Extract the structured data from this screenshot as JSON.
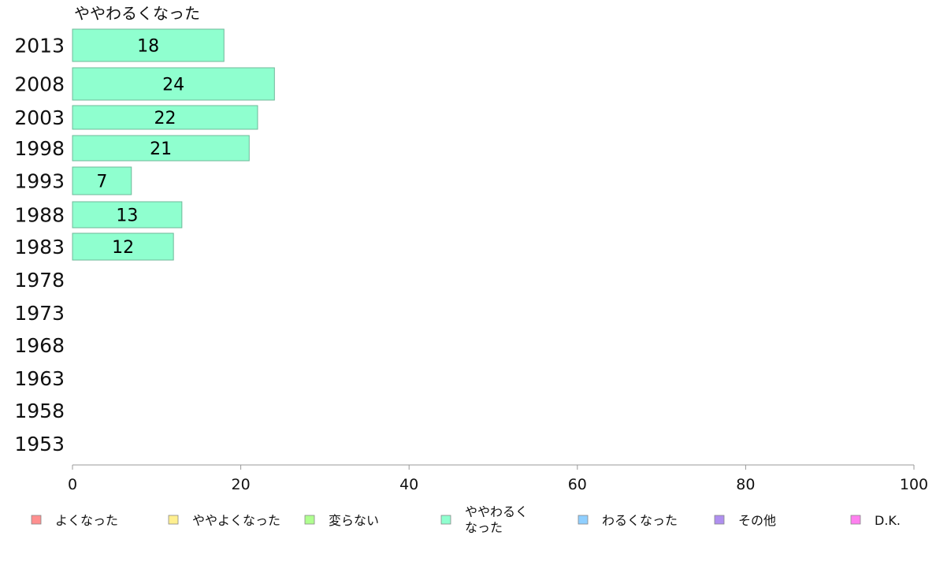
{
  "chart_data": {
    "type": "bar",
    "orientation": "horizontal",
    "title": "ややわるくなった",
    "categories": [
      "2013",
      "2008",
      "2003",
      "1998",
      "1993",
      "1988",
      "1983",
      "1978",
      "1973",
      "1968",
      "1963",
      "1958",
      "1953"
    ],
    "series": [
      {
        "name": "ややわるくなった",
        "color": "#8fffcf",
        "values": [
          18,
          24,
          22,
          21,
          7,
          13,
          12,
          null,
          null,
          null,
          null,
          null,
          null
        ]
      }
    ],
    "xlim": [
      0,
      100
    ],
    "xticks": [
      0,
      20,
      40,
      60,
      80,
      100
    ],
    "grid": false,
    "legend": {
      "placement": "bottom",
      "entries": [
        {
          "label": "よくなった",
          "color": "#ff8f8f"
        },
        {
          "label": "ややよくなった",
          "color": "#ffef8f"
        },
        {
          "label": "変らない",
          "color": "#afff8f"
        },
        {
          "label": "ややわるく\nなった",
          "color": "#8fffcf"
        },
        {
          "label": "わるくなった",
          "color": "#8fcfff"
        },
        {
          "label": "その他",
          "color": "#af8fef"
        },
        {
          "label": "D.K.",
          "color": "#ff7fef"
        }
      ]
    }
  }
}
